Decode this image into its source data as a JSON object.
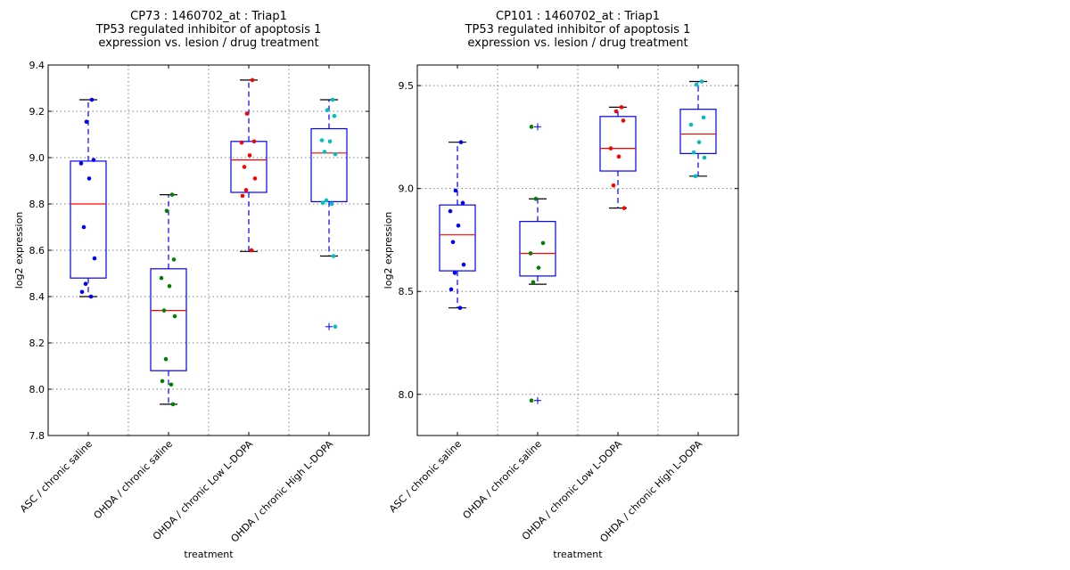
{
  "chart_data": [
    {
      "type": "box",
      "title_lines": [
        "CP73 : 1460702_at : Triap1",
        "TP53 regulated inhibitor of apoptosis 1",
        "expression vs. lesion / drug treatment"
      ],
      "xlabel": "treatment",
      "ylabel": "log2 expression",
      "ylim": [
        7.8,
        9.4
      ],
      "yticks": [
        7.8,
        8.0,
        8.2,
        8.4,
        8.6,
        8.8,
        9.0,
        9.2,
        9.4
      ],
      "ytick_labels": [
        "7.8",
        "8.0",
        "8.2",
        "8.4",
        "8.6",
        "8.8",
        "9.0",
        "9.2",
        "9.4"
      ],
      "grid": true,
      "categories": [
        "ASC / chronic saline",
        "OHDA / chronic saline",
        "OHDA / chronic Low L-DOPA",
        "OHDA / chronic High L-DOPA"
      ],
      "boxes": [
        {
          "whisker_low": 8.4,
          "q1": 8.48,
          "median": 8.8,
          "q3": 8.985,
          "whisker_high": 9.25,
          "fliers": [],
          "color": "#0000ff",
          "points": [
            9.25,
            9.155,
            8.99,
            8.975,
            8.91,
            8.7,
            8.565,
            8.455,
            8.42,
            8.4
          ]
        },
        {
          "whisker_low": 7.935,
          "q1": 8.08,
          "median": 8.34,
          "q3": 8.52,
          "whisker_high": 8.84,
          "fliers": [],
          "color": "#008000",
          "points": [
            8.84,
            8.77,
            8.56,
            8.48,
            8.445,
            8.34,
            8.315,
            8.13,
            8.035,
            8.02,
            7.935
          ]
        },
        {
          "whisker_low": 8.595,
          "q1": 8.85,
          "median": 8.99,
          "q3": 9.07,
          "whisker_high": 9.335,
          "fliers": [],
          "color": "#ff0000",
          "points": [
            9.335,
            9.19,
            9.07,
            9.065,
            9.01,
            8.96,
            8.91,
            8.86,
            8.835,
            8.6
          ]
        },
        {
          "whisker_low": 8.575,
          "q1": 8.81,
          "median": 9.02,
          "q3": 9.125,
          "whisker_high": 9.25,
          "fliers": [
            8.27
          ],
          "color": "#00bfbf",
          "points": [
            9.25,
            9.205,
            9.18,
            9.075,
            9.07,
            9.025,
            9.015,
            8.815,
            8.805,
            8.8,
            8.575,
            8.27
          ]
        }
      ]
    },
    {
      "type": "box",
      "title_lines": [
        "CP101 : 1460702_at : Triap1",
        "TP53 regulated inhibitor of apoptosis 1",
        "expression vs. lesion / drug treatment"
      ],
      "xlabel": "treatment",
      "ylabel": "log2 expression",
      "ylim": [
        7.8,
        9.6
      ],
      "yticks": [
        8.0,
        8.5,
        9.0,
        9.5
      ],
      "ytick_labels": [
        "8.0",
        "8.5",
        "9.0",
        "9.5"
      ],
      "grid": true,
      "categories": [
        "ASC / chronic saline",
        "OHDA / chronic saline",
        "OHDA / chronic Low L-DOPA",
        "OHDA / chronic High L-DOPA"
      ],
      "boxes": [
        {
          "whisker_low": 8.42,
          "q1": 8.6,
          "median": 8.775,
          "q3": 8.92,
          "whisker_high": 9.225,
          "fliers": [],
          "color": "#0000ff",
          "points": [
            9.225,
            8.99,
            8.93,
            8.89,
            8.82,
            8.74,
            8.63,
            8.59,
            8.51,
            8.42
          ]
        },
        {
          "whisker_low": 8.535,
          "q1": 8.575,
          "median": 8.685,
          "q3": 8.84,
          "whisker_high": 8.95,
          "fliers": [
            9.3,
            7.97
          ],
          "color": "#008000",
          "points": [
            9.3,
            8.95,
            8.735,
            8.685,
            8.615,
            8.545,
            7.97
          ]
        },
        {
          "whisker_low": 8.905,
          "q1": 9.085,
          "median": 9.195,
          "q3": 9.35,
          "whisker_high": 9.395,
          "fliers": [],
          "color": "#ff0000",
          "points": [
            9.395,
            9.375,
            9.33,
            9.195,
            9.155,
            9.015,
            8.905
          ]
        },
        {
          "whisker_low": 9.06,
          "q1": 9.17,
          "median": 9.265,
          "q3": 9.385,
          "whisker_high": 9.52,
          "fliers": [],
          "color": "#00bfbf",
          "points": [
            9.52,
            9.505,
            9.345,
            9.31,
            9.225,
            9.175,
            9.15,
            9.06
          ]
        }
      ]
    }
  ],
  "style": {
    "box_color": "#0000ff",
    "median_color": "#ff0000",
    "cap_color": "#000000",
    "grid_color": "#808080"
  }
}
